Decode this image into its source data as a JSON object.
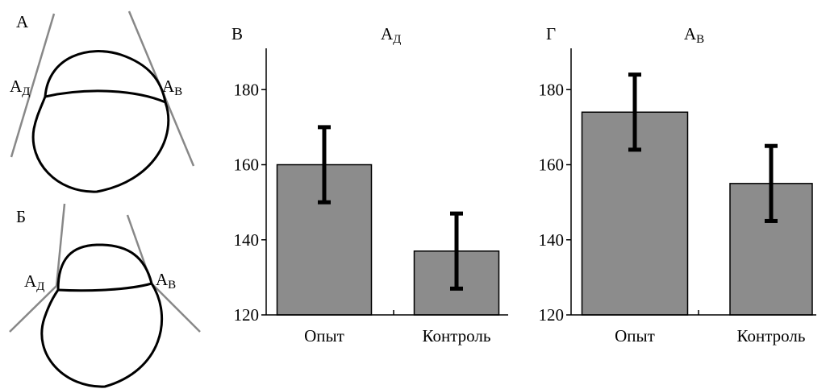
{
  "diagrams": [
    {
      "label": "А",
      "left": {
        "main": "А",
        "sub": "Д"
      },
      "right": {
        "main": "А",
        "sub": "В"
      }
    },
    {
      "label": "Б",
      "left": {
        "main": "А",
        "sub": "Д"
      },
      "right": {
        "main": "А",
        "sub": "В"
      }
    }
  ],
  "chart_data": [
    {
      "type": "bar",
      "panel": "В",
      "title": "А",
      "title_subscript": "Д",
      "categories": [
        "Опыт",
        "Контроль"
      ],
      "values": [
        160,
        137
      ],
      "errors": [
        10,
        10
      ],
      "color": "#8c8c8c",
      "ylim": [
        120,
        191
      ],
      "yticks": [
        120,
        140,
        160,
        180
      ]
    },
    {
      "type": "bar",
      "panel": "Г",
      "title": "А",
      "title_subscript": "В",
      "categories": [
        "Опыт",
        "Контроль"
      ],
      "values": [
        174,
        155
      ],
      "errors": [
        10,
        10
      ],
      "color": "#8c8c8c",
      "ylim": [
        120,
        191
      ],
      "yticks": [
        120,
        140,
        160,
        180
      ]
    }
  ]
}
